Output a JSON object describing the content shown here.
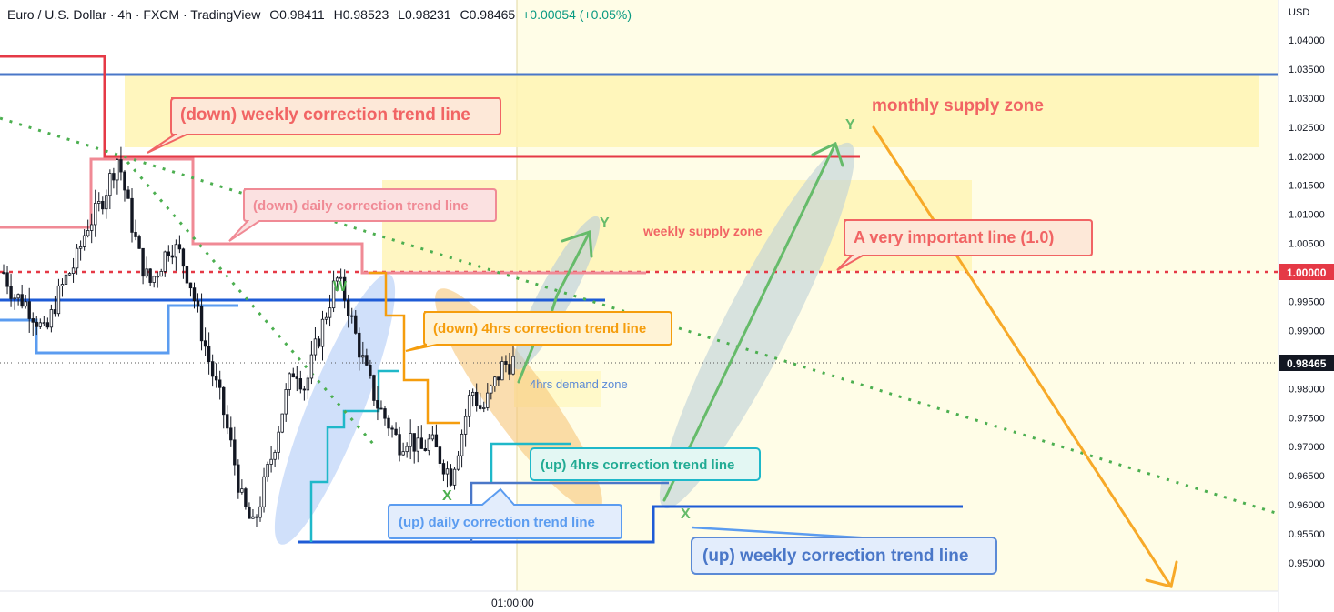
{
  "header": {
    "symbol": "Euro / U.S. Dollar",
    "interval": "4h",
    "exchange": "FXCM",
    "platform": "TradingView",
    "open": "O0.98411",
    "high": "H0.98523",
    "low": "L0.98231",
    "close": "C0.98465",
    "change": "+0.00054 (+0.05%)"
  },
  "chart_data": {
    "type": "candlestick",
    "currency_label": "USD",
    "y_ticks": [
      "1.04000",
      "1.03500",
      "1.03000",
      "1.02500",
      "1.02000",
      "1.01500",
      "1.01000",
      "1.00500",
      "1.00000",
      "0.99500",
      "0.99000",
      "0.98500",
      "0.98000",
      "0.97500",
      "0.97000",
      "0.96500",
      "0.96000",
      "0.95500",
      "0.95000"
    ],
    "ylim": [
      0.945,
      1.045
    ],
    "x_tick_label": "01:00:00",
    "last_price": "0.98465",
    "key_level_label": "1.00000",
    "price_path": [
      1.0,
      0.996,
      0.995,
      0.9925,
      0.989,
      0.995,
      0.999,
      1.002,
      1.008,
      1.0105,
      1.015,
      1.02,
      1.011,
      1.003,
      0.998,
      1.001,
      1.005,
      1.003,
      0.998,
      0.99,
      0.983,
      0.977,
      0.969,
      0.96,
      0.956,
      0.963,
      0.97,
      0.978,
      0.984,
      0.98,
      0.987,
      0.993,
      0.999,
      0.995,
      0.988,
      0.982,
      0.977,
      0.974,
      0.9705,
      0.972,
      0.969,
      0.971,
      0.968,
      0.965,
      0.972,
      0.98,
      0.976,
      0.98,
      0.984,
      0.9847
    ],
    "annotations": [
      {
        "text": "(down) weekly correction trend line",
        "color": "#f23645"
      },
      {
        "text": "(down) daily correction trend line",
        "color": "#f23645"
      },
      {
        "text": "(down) 4hrs correction trend line",
        "color": "#ff9800"
      },
      {
        "text": "A very important line (1.0)",
        "color": "#f23645"
      },
      {
        "text": "(up) 4hrs correction trend line",
        "color": "#22ab94"
      },
      {
        "text": "(up) daily correction trend line",
        "color": "#2962ff"
      },
      {
        "text": "(up) weekly correction trend line",
        "color": "#2962ff"
      }
    ],
    "zones": [
      {
        "text": "monthly supply zone"
      },
      {
        "text": "weekly supply zone"
      },
      {
        "text": "4hrs demand zone"
      }
    ],
    "wave_labels": [
      "W",
      "X",
      "Y",
      "Y",
      "X",
      "Y"
    ],
    "colors": {
      "candle": "#131722",
      "resistance_red": "#e53946",
      "light_red": "#f08a95",
      "dark_blue": "#1e5bd6",
      "light_blue": "#5b9cf0",
      "cyan": "#1fb8c9",
      "orange": "#f59d0d",
      "green": "#4caf50",
      "yellow_zone": "#fff9c4",
      "key_level": "#e53946"
    }
  }
}
